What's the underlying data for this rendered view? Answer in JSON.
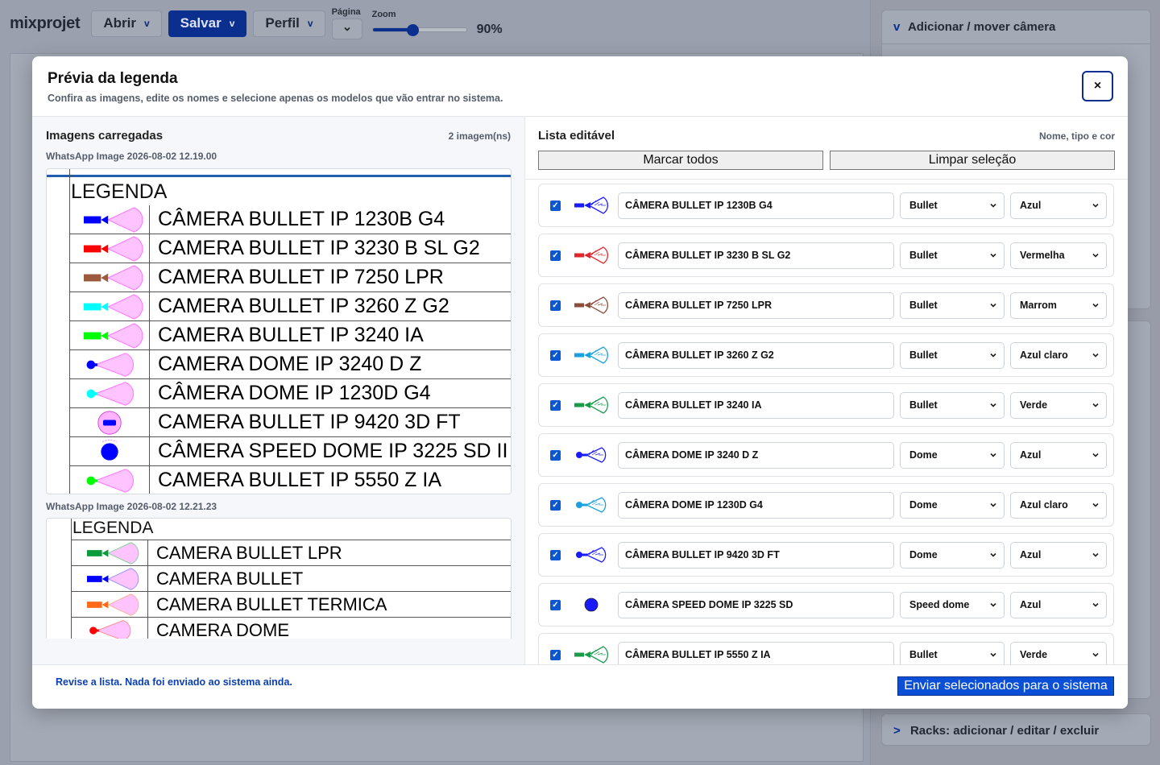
{
  "app": {
    "brand": "mixprojet",
    "menu": {
      "open": "Abrir",
      "save": "Salvar",
      "profile": "Perfil",
      "chevron": "v"
    },
    "page_label": "Página",
    "zoom_label": "Zoom",
    "zoom_value": "90%",
    "zoom_fraction": 0.42
  },
  "right_panel": {
    "section_camera": "Adicionar / mover câmera",
    "section_racks": "Racks: adicionar / editar / excluir",
    "open_chevron": "v",
    "closed_chevron": ">"
  },
  "modal": {
    "title": "Prévia da legenda",
    "subtitle": "Confira as imagens, edite os nomes e selecione apenas os modelos que vão entrar no sistema.",
    "close": "×",
    "left": {
      "title": "Imagens carregadas",
      "count": "2 imagem(ns)",
      "images": [
        {
          "caption": "WhatsApp Image 2026-08-02 12.19.00",
          "legend_header": "LEGENDA",
          "rows": [
            {
              "text": "CÂMERA BULLET IP 1230B G4",
              "kind": "bullet",
              "color": "#0000ff",
              "cone": "#ff77ff"
            },
            {
              "text": "CAMERA BULLET IP 3230 B SL G2",
              "kind": "bullet",
              "color": "#ff0000",
              "cone": "#ff77ff"
            },
            {
              "text": "CAMERA BULLET IP 7250 LPR",
              "kind": "bullet",
              "color": "#9b5a3c",
              "cone": "#ff77ff"
            },
            {
              "text": "CAMERA BULLET IP 3260 Z G2",
              "kind": "bullet",
              "color": "#00ffff",
              "cone": "#ff77ff"
            },
            {
              "text": "CAMERA BULLET IP 3240 IA",
              "kind": "bullet",
              "color": "#00ff00",
              "cone": "#ff77ff"
            },
            {
              "text": "CAMERA DOME IP 3240 D Z",
              "kind": "dome",
              "color": "#0000ff",
              "cone": "#ff77ff"
            },
            {
              "text": "CÂMERA DOME IP 1230D G4",
              "kind": "dome",
              "color": "#00ffff",
              "cone": "#ff77ff"
            },
            {
              "text": "CAMERA BULLET IP 9420 3D FT",
              "kind": "ptz",
              "color": "#0000ff",
              "cone": "#ff77ff"
            },
            {
              "text": "CÂMERA SPEED DOME IP 3225 SD II",
              "kind": "speed",
              "color": "#0000ff",
              "cone": "#ff77ff"
            },
            {
              "text": "CAMERA BULLET IP 5550 Z IA",
              "kind": "dome",
              "color": "#00ff00",
              "cone": "#ff77ff"
            }
          ]
        },
        {
          "caption": "WhatsApp Image 2026-08-02 12.21.23",
          "legend_header": "LEGENDA",
          "rows": [
            {
              "text": "CAMERA BULLET LPR",
              "kind": "bullet",
              "color": "#0a9b3a",
              "cone": "#7fd08f"
            },
            {
              "text": "CAMERA BULLET",
              "kind": "bullet",
              "color": "#0000ff",
              "cone": "#8f8fff"
            },
            {
              "text": "CAMERA BULLET TERMICA",
              "kind": "bullet",
              "color": "#ff6a1a",
              "cone": "#ffb08a"
            },
            {
              "text": "CAMERA DOME",
              "kind": "dome",
              "color": "#ff0000",
              "cone": "#ff8a8a"
            }
          ]
        }
      ]
    },
    "right": {
      "title": "Lista editável",
      "hint": "Nome, tipo e cor",
      "select_all": "Marcar todos",
      "clear_selection": "Limpar seleção",
      "items": [
        {
          "checked": true,
          "name": "CÂMERA BULLET IP 1230B G4",
          "type": "Bullet",
          "color": "Azul",
          "icon_kind": "bullet",
          "icon_color": "#1a1aff"
        },
        {
          "checked": true,
          "name": "CÂMERA BULLET IP 3230 B SL G2",
          "type": "Bullet",
          "color": "Vermelha",
          "icon_kind": "bullet",
          "icon_color": "#e0262e"
        },
        {
          "checked": true,
          "name": "CÂMERA BULLET IP 7250 LPR",
          "type": "Bullet",
          "color": "Marrom",
          "icon_kind": "bullet",
          "icon_color": "#8a4f3a"
        },
        {
          "checked": true,
          "name": "CÂMERA BULLET IP 3260 Z G2",
          "type": "Bullet",
          "color": "Azul claro",
          "icon_kind": "bullet",
          "icon_color": "#1aa0e0"
        },
        {
          "checked": true,
          "name": "CÂMERA BULLET IP 3240 IA",
          "type": "Bullet",
          "color": "Verde",
          "icon_kind": "bullet",
          "icon_color": "#1a9b4a"
        },
        {
          "checked": true,
          "name": "CÂMERA DOME IP 3240 D Z",
          "type": "Dome",
          "color": "Azul",
          "icon_kind": "dome",
          "icon_color": "#1a1aff"
        },
        {
          "checked": true,
          "name": "CÂMERA DOME IP 1230D G4",
          "type": "Dome",
          "color": "Azul claro",
          "icon_kind": "dome",
          "icon_color": "#1aa0e0"
        },
        {
          "checked": true,
          "name": "CÂMERA BULLET IP 9420 3D FT",
          "type": "Dome",
          "color": "Azul",
          "icon_kind": "dome",
          "icon_color": "#1a1aff"
        },
        {
          "checked": true,
          "name": "CÂMERA SPEED DOME IP 3225 SD",
          "type": "Speed dome",
          "color": "Azul",
          "icon_kind": "speed",
          "icon_color": "#1a1aff"
        },
        {
          "checked": true,
          "name": "CÂMERA BULLET IP 5550 Z IA",
          "type": "Bullet",
          "color": "Verde",
          "icon_kind": "bullet",
          "icon_color": "#1a9b4a"
        }
      ]
    },
    "footer": {
      "message": "Revise a lista. Nada foi enviado ao sistema ainda.",
      "send": "Enviar selecionados para o sistema"
    }
  }
}
